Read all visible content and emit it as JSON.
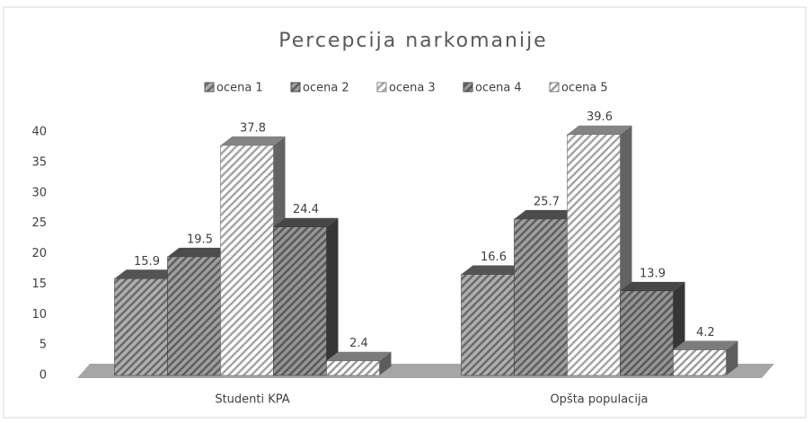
{
  "chart_data": {
    "type": "bar3d",
    "title": "Percepcija narkomanije",
    "categories": [
      "Studenti KPA",
      "Opšta populacija"
    ],
    "series": [
      {
        "name": "ocena 1",
        "color": "#8c8c8c",
        "values": [
          15.9,
          16.6
        ]
      },
      {
        "name": "ocena 2",
        "color": "#7f7f7f",
        "values": [
          19.5,
          25.7
        ]
      },
      {
        "name": "ocena 3",
        "color": "#dcdcdc",
        "values": [
          37.8,
          39.6
        ]
      },
      {
        "name": "ocena 4",
        "color": "#777777",
        "values": [
          24.4,
          13.9
        ]
      },
      {
        "name": "ocena 5",
        "color": "#cfcfcf",
        "values": [
          2.4,
          4.2
        ]
      }
    ],
    "ylim": [
      0,
      40
    ],
    "yticks": [
      0,
      5,
      10,
      15,
      20,
      25,
      30,
      35,
      40
    ],
    "legend": "top"
  }
}
